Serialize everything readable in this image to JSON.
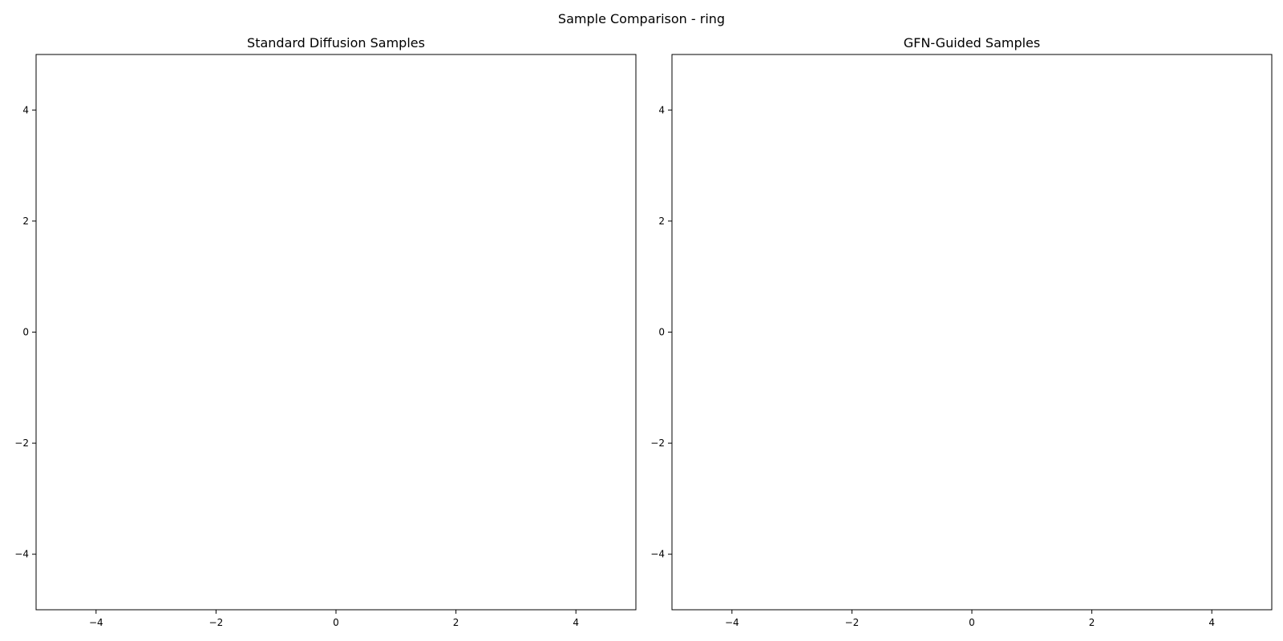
{
  "figure": {
    "suptitle": "Sample Comparison - ring"
  },
  "chart_data": [
    {
      "type": "scatter",
      "title": "Standard Diffusion Samples",
      "xlabel": "",
      "ylabel": "",
      "xlim": [
        -5,
        5
      ],
      "ylim": [
        -5,
        5
      ],
      "xticks": [
        -4,
        -2,
        0,
        2,
        4
      ],
      "yticks": [
        -4,
        -2,
        0,
        2,
        4
      ],
      "xtick_labels": [
        "−4",
        "−2",
        "0",
        "2",
        "4"
      ],
      "ytick_labels": [
        "−4",
        "−2",
        "0",
        "2",
        "4"
      ],
      "grid": false,
      "series": [
        {
          "x": [],
          "y": []
        }
      ]
    },
    {
      "type": "scatter",
      "title": "GFN-Guided Samples",
      "xlabel": "",
      "ylabel": "",
      "xlim": [
        -5,
        5
      ],
      "ylim": [
        -5,
        5
      ],
      "xticks": [
        -4,
        -2,
        0,
        2,
        4
      ],
      "yticks": [
        -4,
        -2,
        0,
        2,
        4
      ],
      "xtick_labels": [
        "−4",
        "−2",
        "0",
        "2",
        "4"
      ],
      "ytick_labels": [
        "−4",
        "−2",
        "0",
        "2",
        "4"
      ],
      "grid": false,
      "series": [
        {
          "x": [],
          "y": []
        }
      ]
    }
  ]
}
